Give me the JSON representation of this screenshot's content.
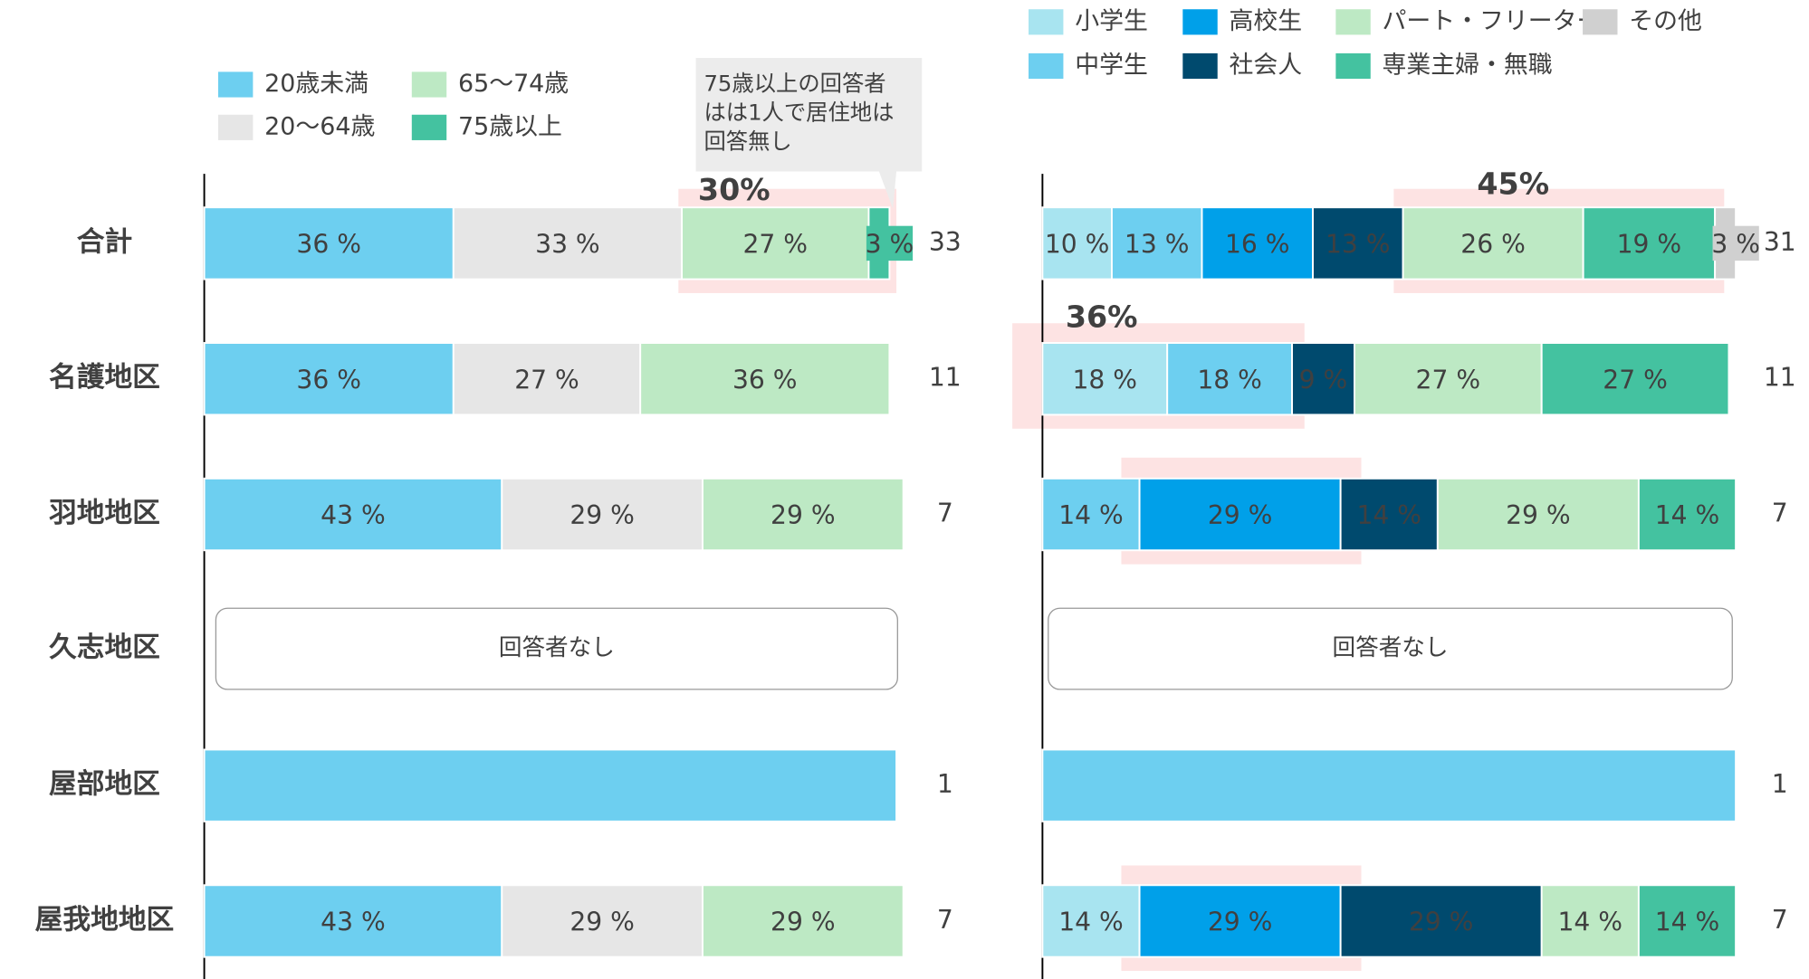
{
  "chart_data": [
    {
      "type": "bar",
      "orientation": "horizontal",
      "stacked": true,
      "categories": [
        "合計",
        "名護地区",
        "羽地地区",
        "久志地区",
        "屋部地区",
        "屋我地地区"
      ],
      "xlim": [
        0,
        100
      ],
      "series": [
        {
          "name": "20歳未満",
          "color": "#6dcff0",
          "values": [
            36,
            36,
            43,
            null,
            100,
            43
          ],
          "value_labels": [
            "36 %",
            "36 %",
            "43 %",
            null,
            null,
            "43 %"
          ]
        },
        {
          "name": "20～64歳",
          "color": "#e6e6e6",
          "values": [
            33,
            27,
            29,
            null,
            null,
            29
          ],
          "value_labels": [
            "33 %",
            "27 %",
            "29 %",
            null,
            null,
            "29 %"
          ]
        },
        {
          "name": "65～74歳",
          "color": "#bde9c4",
          "values": [
            27,
            36,
            29,
            null,
            null,
            29
          ],
          "value_labels": [
            "27 %",
            "36 %",
            "29 %",
            null,
            null,
            "29 %"
          ]
        },
        {
          "name": "75歳以上",
          "color": "#44c2a0",
          "values": [
            3,
            null,
            null,
            null,
            null,
            null
          ],
          "value_labels": [
            "3 %",
            null,
            null,
            null,
            null,
            null
          ]
        }
      ],
      "n": [
        33,
        11,
        7,
        null,
        1,
        7
      ],
      "no_response": "回答者なし",
      "highlights": [
        {
          "label": "30%"
        }
      ],
      "callout": [
        "75歳以上の回答者",
        "はは1人で居住地は",
        "回答無し"
      ]
    },
    {
      "type": "bar",
      "orientation": "horizontal",
      "stacked": true,
      "xlim": [
        0,
        100
      ],
      "series": [
        {
          "name": "小学生",
          "color": "#a8e4f0",
          "values": [
            10,
            18,
            null,
            null,
            null,
            14
          ],
          "value_labels": [
            "10 %",
            "18 %",
            null,
            null,
            null,
            "14 %"
          ]
        },
        {
          "name": "中学生",
          "color": "#6dcff0",
          "values": [
            13,
            18,
            14,
            null,
            100,
            null
          ],
          "value_labels": [
            "13 %",
            "18 %",
            "14 %",
            null,
            null,
            null
          ]
        },
        {
          "name": "高校生",
          "color": "#00a0e9",
          "values": [
            16,
            null,
            29,
            null,
            null,
            29
          ],
          "value_labels": [
            "16 %",
            null,
            "29 %",
            null,
            null,
            "29 %"
          ]
        },
        {
          "name": "社会人",
          "color": "#004a6e",
          "values": [
            13,
            9,
            14,
            null,
            null,
            29
          ],
          "value_labels": [
            "13 %",
            "9 %",
            "14 %",
            null,
            null,
            "29 %"
          ]
        },
        {
          "name": "パート・フリーター",
          "color": "#bde9c4",
          "values": [
            26,
            27,
            29,
            null,
            null,
            14
          ],
          "value_labels": [
            "26 %",
            "27 %",
            "29 %",
            null,
            null,
            "14 %"
          ]
        },
        {
          "name": "専業主婦・無職",
          "color": "#44c2a0",
          "values": [
            19,
            27,
            14,
            null,
            null,
            14
          ],
          "value_labels": [
            "19 %",
            "27 %",
            "14 %",
            null,
            null,
            "14 %"
          ]
        },
        {
          "name": "その他",
          "color": "#d0d0d0",
          "values": [
            3,
            null,
            null,
            null,
            null,
            null
          ],
          "value_labels": [
            "3 %",
            null,
            null,
            null,
            null,
            null
          ]
        }
      ],
      "n": [
        31,
        11,
        7,
        null,
        1,
        7
      ],
      "no_response": "回答者なし",
      "highlights": [
        {
          "label": "45%"
        },
        {
          "label": "36%"
        }
      ]
    }
  ]
}
